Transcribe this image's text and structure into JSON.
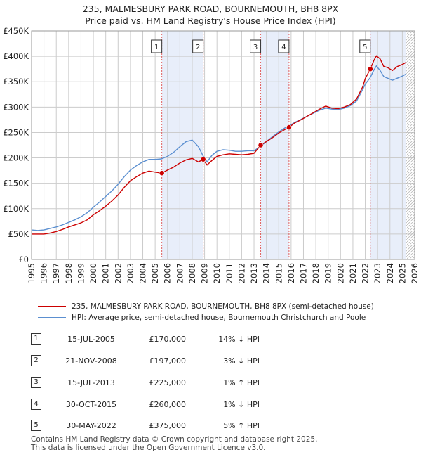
{
  "chart_data": {
    "type": "line",
    "title": "235, MALMESBURY PARK ROAD, BOURNEMOUTH, BH8 8PX",
    "subtitle": "Price paid vs. HM Land Registry's House Price Index (HPI)",
    "xlabel": "",
    "ylabel": "",
    "xlim": [
      1995,
      2026
    ],
    "ylim": [
      0,
      450000
    ],
    "yticks": [
      {
        "value": 0,
        "label": "£0"
      },
      {
        "value": 50000,
        "label": "£50K"
      },
      {
        "value": 100000,
        "label": "£100K"
      },
      {
        "value": 150000,
        "label": "£150K"
      },
      {
        "value": 200000,
        "label": "£200K"
      },
      {
        "value": 250000,
        "label": "£250K"
      },
      {
        "value": 300000,
        "label": "£300K"
      },
      {
        "value": 350000,
        "label": "£350K"
      },
      {
        "value": 400000,
        "label": "£400K"
      },
      {
        "value": 450000,
        "label": "£450K"
      }
    ],
    "xticks": [
      "1995",
      "1996",
      "1997",
      "1998",
      "1999",
      "2000",
      "2001",
      "2002",
      "2003",
      "2004",
      "2005",
      "2006",
      "2007",
      "2008",
      "2009",
      "2010",
      "2011",
      "2012",
      "2013",
      "2014",
      "2015",
      "2016",
      "2017",
      "2018",
      "2019",
      "2020",
      "2021",
      "2022",
      "2023",
      "2024",
      "2025",
      "2026"
    ],
    "series": [
      {
        "name": "235, MALMESBURY PARK ROAD, BOURNEMOUTH, BH8 8PX (semi-detached house)",
        "color": "#cc0000",
        "x": [
          1995.0,
          1995.5,
          1996.0,
          1996.5,
          1997.0,
          1997.5,
          1998.0,
          1998.5,
          1999.0,
          1999.5,
          2000.0,
          2000.5,
          2001.0,
          2001.5,
          2002.0,
          2002.5,
          2003.0,
          2003.5,
          2004.0,
          2004.5,
          2005.0,
          2005.54,
          2006.0,
          2006.5,
          2007.0,
          2007.5,
          2008.0,
          2008.5,
          2008.89,
          2009.2,
          2009.6,
          2010.0,
          2010.5,
          2011.0,
          2011.5,
          2012.0,
          2012.5,
          2013.0,
          2013.54,
          2014.0,
          2014.5,
          2015.0,
          2015.5,
          2015.83,
          2016.3,
          2016.8,
          2017.3,
          2017.8,
          2018.3,
          2018.8,
          2019.3,
          2019.8,
          2020.3,
          2020.8,
          2021.3,
          2021.8,
          2022.0,
          2022.41,
          2022.7,
          2022.9,
          2023.2,
          2023.5,
          2023.8,
          2024.2,
          2024.6,
          2025.0,
          2025.3
        ],
        "values": [
          50000,
          50000,
          50000,
          52000,
          55000,
          59000,
          64000,
          68000,
          72000,
          78000,
          88000,
          96000,
          105000,
          115000,
          127000,
          142000,
          155000,
          163000,
          170000,
          174000,
          172000,
          170000,
          176000,
          182000,
          190000,
          196000,
          199000,
          192000,
          197000,
          186000,
          195000,
          203000,
          206000,
          208000,
          207000,
          206000,
          207000,
          209000,
          225000,
          232000,
          240000,
          249000,
          256000,
          260000,
          269000,
          275000,
          282000,
          289000,
          296000,
          302000,
          298000,
          297000,
          300000,
          305000,
          316000,
          340000,
          356000,
          375000,
          392000,
          401000,
          395000,
          380000,
          378000,
          372000,
          380000,
          384000,
          388000
        ]
      },
      {
        "name": "HPI: Average price, semi-detached house, Bournemouth Christchurch and Poole",
        "color": "#5b8fd0",
        "x": [
          1995.0,
          1995.5,
          1996.0,
          1996.5,
          1997.0,
          1997.5,
          1998.0,
          1998.5,
          1999.0,
          1999.5,
          2000.0,
          2000.5,
          2001.0,
          2001.5,
          2002.0,
          2002.5,
          2003.0,
          2003.5,
          2004.0,
          2004.5,
          2005.0,
          2005.5,
          2006.0,
          2006.5,
          2007.0,
          2007.5,
          2008.0,
          2008.5,
          2008.9,
          2009.2,
          2009.6,
          2010.0,
          2010.5,
          2011.0,
          2011.5,
          2012.0,
          2012.5,
          2013.0,
          2013.5,
          2014.0,
          2014.5,
          2015.0,
          2015.5,
          2015.83,
          2016.3,
          2016.8,
          2017.3,
          2017.8,
          2018.3,
          2018.8,
          2019.3,
          2019.8,
          2020.3,
          2020.8,
          2021.3,
          2021.8,
          2022.0,
          2022.4,
          2022.7,
          2022.9,
          2023.2,
          2023.5,
          2023.8,
          2024.2,
          2024.6,
          2025.0,
          2025.3
        ],
        "values": [
          58000,
          57000,
          58000,
          61000,
          64000,
          68000,
          73000,
          78000,
          84000,
          92000,
          103000,
          113000,
          124000,
          135000,
          148000,
          163000,
          176000,
          185000,
          192000,
          197000,
          197000,
          198000,
          203000,
          211000,
          222000,
          232000,
          235000,
          222000,
          203000,
          192000,
          205000,
          213000,
          216000,
          215000,
          213000,
          213000,
          214000,
          214000,
          222000,
          232000,
          242000,
          251000,
          259000,
          263000,
          270000,
          276000,
          282000,
          288000,
          294000,
          298000,
          296000,
          295000,
          298000,
          303000,
          312000,
          335000,
          345000,
          358000,
          373000,
          381000,
          372000,
          360000,
          357000,
          353000,
          357000,
          361000,
          365000
        ]
      }
    ],
    "sales": [
      {
        "n": "1",
        "x": 2005.54,
        "value": 170000
      },
      {
        "n": "2",
        "x": 2008.89,
        "value": 197000
      },
      {
        "n": "3",
        "x": 2013.54,
        "value": 225000
      },
      {
        "n": "4",
        "x": 2015.83,
        "value": 260000
      },
      {
        "n": "5",
        "x": 2022.41,
        "value": 375000
      }
    ],
    "shaded_periods": [
      [
        2005.54,
        2008.89
      ],
      [
        2013.54,
        2015.83
      ],
      [
        2022.41,
        2025.3
      ]
    ]
  },
  "legend": {
    "property": "235, MALMESBURY PARK ROAD, BOURNEMOUTH, BH8 8PX (semi-detached house)",
    "hpi": "HPI: Average price, semi-detached house, Bournemouth Christchurch and Poole"
  },
  "transactions": [
    {
      "n": "1",
      "date": "15-JUL-2005",
      "price": "£170,000",
      "hpi": "14% ↓ HPI"
    },
    {
      "n": "2",
      "date": "21-NOV-2008",
      "price": "£197,000",
      "hpi": "3% ↓ HPI"
    },
    {
      "n": "3",
      "date": "15-JUL-2013",
      "price": "£225,000",
      "hpi": "1% ↑ HPI"
    },
    {
      "n": "4",
      "date": "30-OCT-2015",
      "price": "£260,000",
      "hpi": "1% ↓ HPI"
    },
    {
      "n": "5",
      "date": "30-MAY-2022",
      "price": "£375,000",
      "hpi": "5% ↑ HPI"
    }
  ],
  "footer": {
    "line1": "Contains HM Land Registry data © Crown copyright and database right 2025.",
    "line2": "This data is licensed under the Open Government Licence v3.0."
  },
  "colors": {
    "property": "#cc0000",
    "hpi": "#5b8fd0",
    "band": "#e8eefa",
    "grid": "#cccccc"
  }
}
